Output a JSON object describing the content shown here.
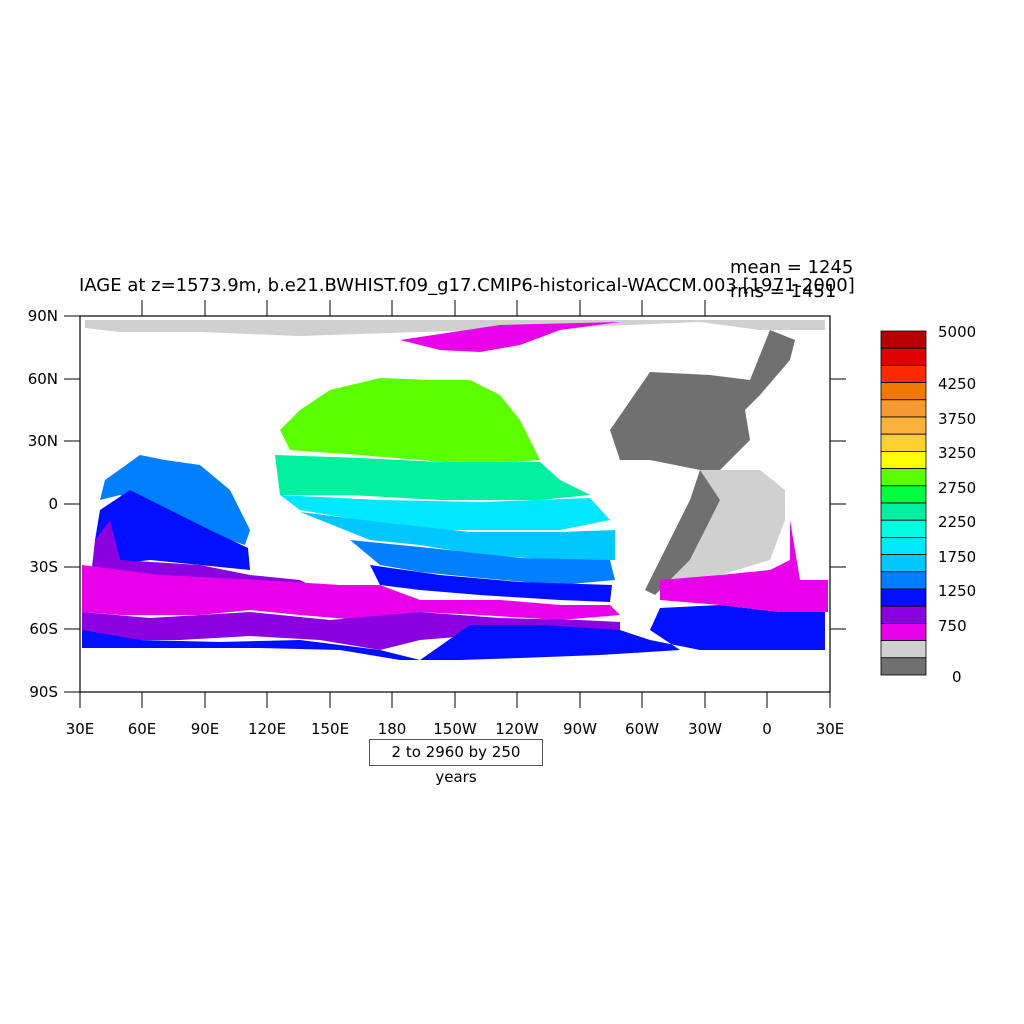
{
  "title": "IAGE at z=1573.9m, b.e21.BWHIST.f09_g17.CMIP6-historical-WACCM.003 [1971-2000]",
  "stats": {
    "mean": "mean = 1245",
    "rms": "rms = 1451"
  },
  "note": "2 to 2960 by 250 years",
  "axes": {
    "lat_labels": [
      "90N",
      "60N",
      "30N",
      "0",
      "30S",
      "60S",
      "90S"
    ],
    "lon_labels": [
      "30E",
      "60E",
      "90E",
      "120E",
      "150E",
      "180",
      "150W",
      "120W",
      "90W",
      "60W",
      "30W",
      "0",
      "30E"
    ]
  },
  "colorbar": {
    "labels": [
      "5000",
      "4250",
      "3750",
      "3250",
      "2750",
      "2250",
      "1750",
      "1250",
      "750",
      "0"
    ],
    "colors": [
      "#b80000",
      "#e00000",
      "#ff2a00",
      "#f07a00",
      "#f59a30",
      "#fbb23a",
      "#ffd230",
      "#ffff00",
      "#5cff00",
      "#00ff40",
      "#00f0a0",
      "#00ffe0",
      "#00e8ff",
      "#00c8ff",
      "#0080ff",
      "#0010ff",
      "#8a00e0",
      "#e800e8",
      "#d0d0d0",
      "#707070"
    ]
  },
  "legend_colors": {
    "land": "#ffffff",
    "ice": "#d0d0d0",
    "atlantic_deep": "#707070"
  }
}
